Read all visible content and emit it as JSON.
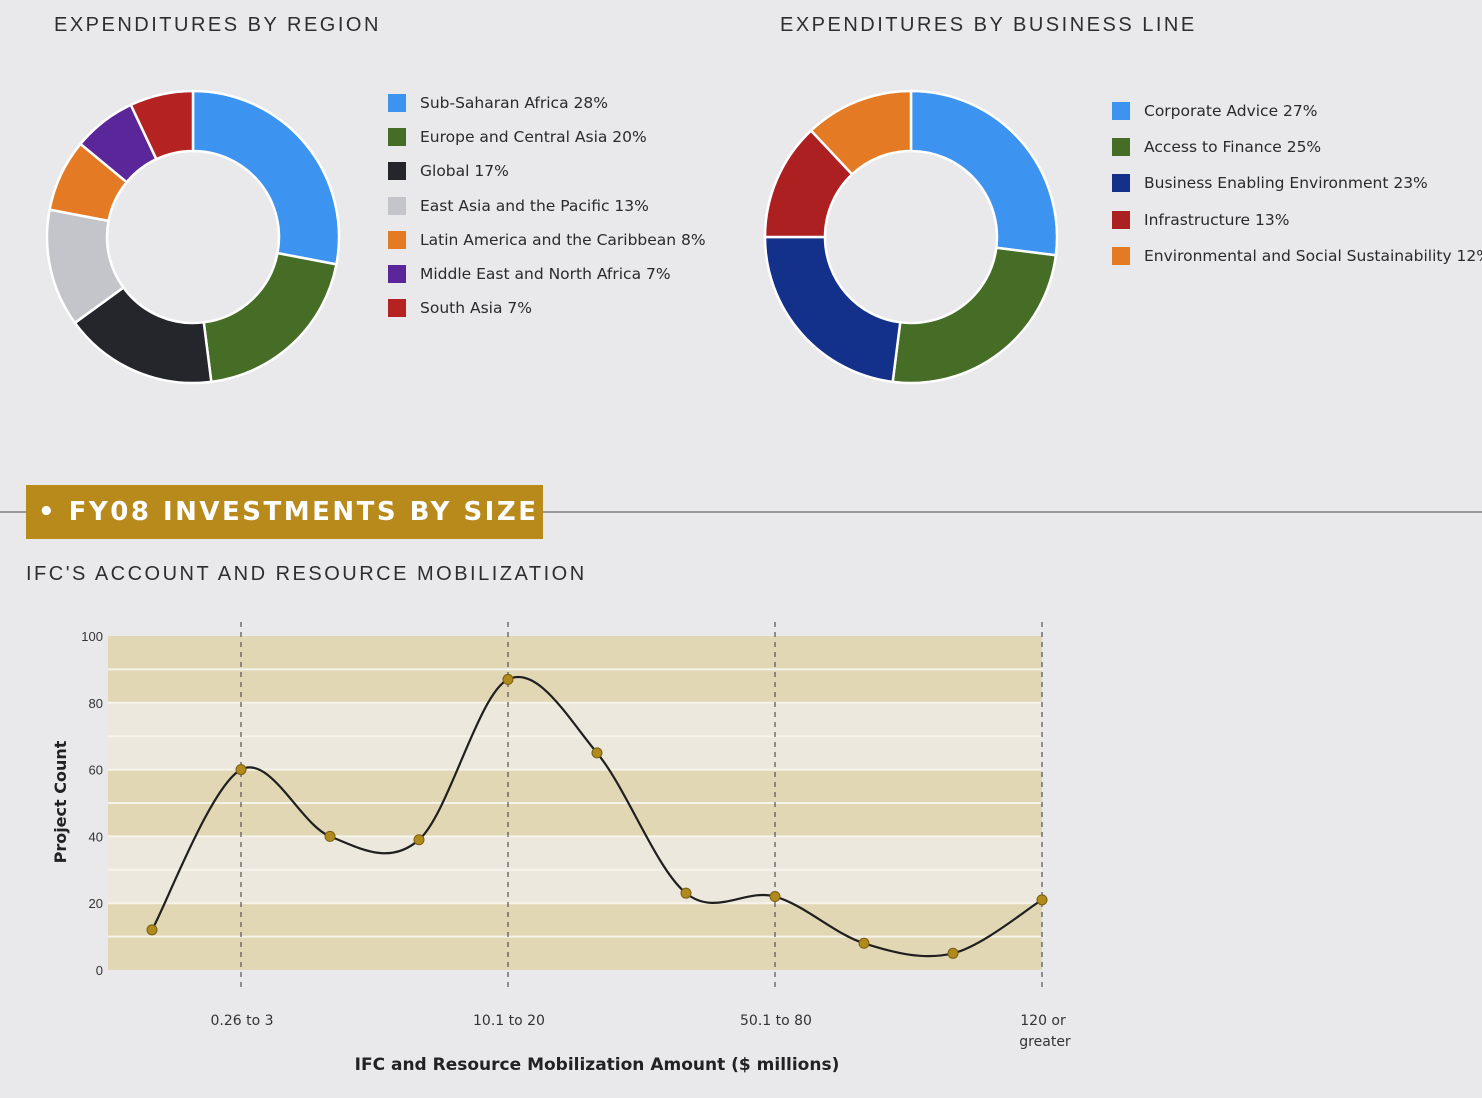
{
  "region_chart": {
    "heading": "EXPENDITURES BY REGION"
  },
  "business_chart": {
    "heading": "EXPENDITURES BY BUSINESS LINE"
  },
  "banner": {
    "text": "• FY08 INVESTMENTS BY SIZE"
  },
  "mobilization_chart": {
    "heading": "IFC'S ACCOUNT AND RESOURCE MOBILIZATION"
  },
  "colors": {
    "banner": "#b88a1c",
    "band": "#e2d7b5",
    "band_light": "#ece8de",
    "point": "#b08a1c",
    "line": "#1f1f1f"
  },
  "chart_data": [
    {
      "type": "pie",
      "variant": "donut",
      "title": "EXPENDITURES BY REGION",
      "legend_placement": "right",
      "slices": [
        {
          "label": "Sub-Saharan Africa 28%",
          "value": 28,
          "color": "#3c93f0"
        },
        {
          "label": "Europe and Central Asia 20%",
          "value": 20,
          "color": "#456d25"
        },
        {
          "label": "Global 17%",
          "value": 17,
          "color": "#24262c"
        },
        {
          "label": "East Asia and the Pacific 13%",
          "value": 13,
          "color": "#c4c5cb"
        },
        {
          "label": "Latin America and the Caribbean 8%",
          "value": 8,
          "color": "#e57a25"
        },
        {
          "label": "Middle East and North Africa 7%",
          "value": 7,
          "color": "#5a269a"
        },
        {
          "label": "South Asia 7%",
          "value": 7,
          "color": "#b42222"
        }
      ]
    },
    {
      "type": "pie",
      "variant": "donut",
      "title": "EXPENDITURES BY BUSINESS LINE",
      "legend_placement": "right",
      "slices": [
        {
          "label": "Corporate Advice 27%",
          "value": 27,
          "color": "#3c93f0"
        },
        {
          "label": "Access to Finance 25%",
          "value": 25,
          "color": "#456d25"
        },
        {
          "label": "Business Enabling Environment 23%",
          "value": 23,
          "color": "#13318a"
        },
        {
          "label": "Infrastructure 13%",
          "value": 13,
          "color": "#ad2022"
        },
        {
          "label": "Environmental and Social Sustainability 12%",
          "value": 12,
          "color": "#e57a25"
        }
      ]
    },
    {
      "type": "line",
      "title": "IFC'S ACCOUNT AND RESOURCE MOBILIZATION",
      "xlabel": "IFC and Resource Mobilization Amount ($ millions)",
      "ylabel": "Project Count",
      "ylim": [
        0,
        100
      ],
      "yticks": [
        0,
        20,
        40,
        60,
        80,
        100
      ],
      "xticks": [
        {
          "label": "0.26 to 3",
          "index": 1
        },
        {
          "label": "10.1 to 20",
          "index": 4
        },
        {
          "label": "50.1 to 80",
          "index": 7
        },
        {
          "label": "120 or greater",
          "index": 10
        }
      ],
      "series": [
        {
          "values": [
            12,
            60,
            40,
            39,
            87,
            65,
            23,
            22,
            8,
            5,
            21
          ]
        }
      ]
    }
  ]
}
